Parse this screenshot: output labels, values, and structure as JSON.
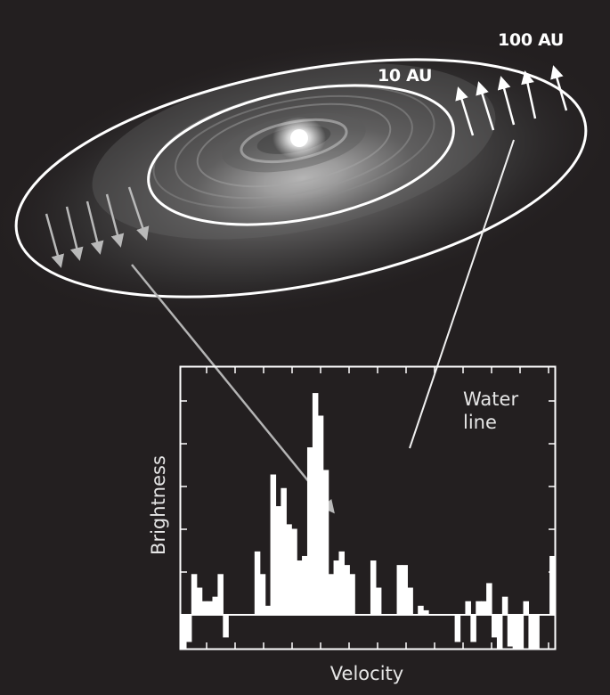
{
  "orbits": {
    "outer_label": "100 AU",
    "inner_label": "10 AU"
  },
  "spectrum": {
    "line_label_lines": [
      "Water",
      "line"
    ],
    "xlabel": "Velocity",
    "ylabel": "Brightness",
    "baseline": 0,
    "chart_data": {
      "type": "bar",
      "title": "",
      "xlabel": "Velocity",
      "ylabel": "Brightness",
      "values": [
        -0.8,
        -0.6,
        0.9,
        0.6,
        0.3,
        0.3,
        0.4,
        0.9,
        -0.5,
        0,
        0,
        0,
        0,
        0,
        1.4,
        0.9,
        0.2,
        3.1,
        2.4,
        2.8,
        2.0,
        1.9,
        1.2,
        1.3,
        3.7,
        4.9,
        4.4,
        3.2,
        0.9,
        1.2,
        1.4,
        1.1,
        0.9,
        0,
        0,
        0,
        1.2,
        0.6,
        0,
        0,
        0,
        1.1,
        1.1,
        0.6,
        0,
        0.2,
        0.1,
        0,
        0,
        0,
        0,
        0,
        -0.6,
        0,
        0.3,
        -0.6,
        0.3,
        0.3,
        0.7,
        -0.5,
        -1.0,
        0.4,
        -0.7,
        -0.8,
        -0.8,
        0.3,
        -0.8,
        -0.8,
        0,
        0,
        1.3
      ],
      "colors": {
        "fill": "#ffffff",
        "frame": "#ffffff",
        "background": "#231f20"
      }
    }
  },
  "colors": {
    "background": "#231f20",
    "orbit": "#ffffff",
    "arrow_far_side": "#ffffff",
    "arrow_near_side": "#b9b9b9",
    "connector_near": "#b4b4b4",
    "connector_far": "#f0f0f0"
  }
}
